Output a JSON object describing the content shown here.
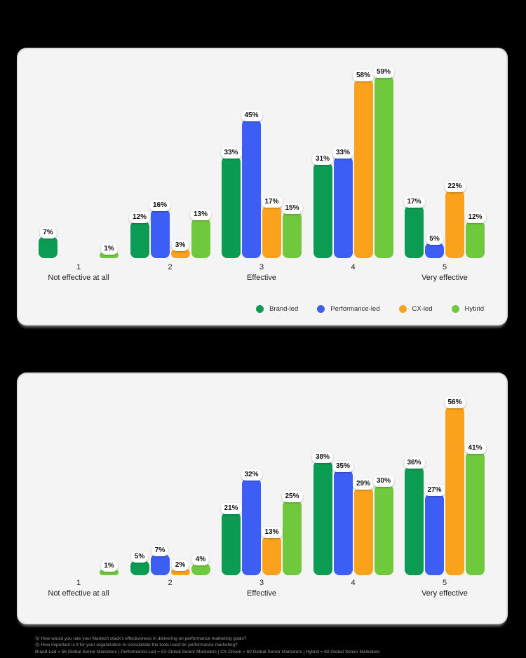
{
  "page": {
    "background": "#000000",
    "panel_background": "#f4f4f5"
  },
  "series_meta": [
    {
      "name": "Brand-led",
      "color": "#0c9b53"
    },
    {
      "name": "Performance-led",
      "color": "#3d5ef5"
    },
    {
      "name": "CX-led",
      "color": "#faa21c"
    },
    {
      "name": "Hybrid",
      "color": "#70c93d"
    }
  ],
  "chart_data": [
    {
      "type": "bar",
      "title": "",
      "categories": [
        "1",
        "2",
        "3",
        "4",
        "5"
      ],
      "category_sublabels": [
        "Not effective at all",
        "",
        "Effective",
        "",
        "Very effective"
      ],
      "series": [
        {
          "name": "Brand-led",
          "color": "#0c9b53",
          "values": [
            7,
            12,
            33,
            31,
            17
          ]
        },
        {
          "name": "Performance-led",
          "color": "#3d5ef5",
          "values": [
            0,
            16,
            45,
            33,
            5
          ]
        },
        {
          "name": "CX-led",
          "color": "#faa21c",
          "values": [
            0,
            3,
            17,
            58,
            22
          ]
        },
        {
          "name": "Hybrid",
          "color": "#70c93d",
          "values": [
            1,
            13,
            15,
            59,
            12
          ]
        }
      ],
      "value_suffix": "%",
      "ylim": [
        0,
        60
      ],
      "grid": false,
      "legend_position": "bottom-right",
      "show_legend": true
    },
    {
      "type": "bar",
      "title": "",
      "categories": [
        "1",
        "2",
        "3",
        "4",
        "5"
      ],
      "category_sublabels": [
        "Not effective at all",
        "",
        "Effective",
        "",
        "Very effective"
      ],
      "series": [
        {
          "name": "Brand-led",
          "color": "#0c9b53",
          "values": [
            0,
            5,
            21,
            38,
            36
          ]
        },
        {
          "name": "Performance-led",
          "color": "#3d5ef5",
          "values": [
            0,
            7,
            32,
            35,
            27
          ]
        },
        {
          "name": "CX-led",
          "color": "#faa21c",
          "values": [
            0,
            2,
            13,
            29,
            56
          ]
        },
        {
          "name": "Hybrid",
          "color": "#70c93d",
          "values": [
            1,
            4,
            25,
            30,
            41
          ]
        }
      ],
      "value_suffix": "%",
      "ylim": [
        0,
        60
      ],
      "grid": false,
      "legend_position": "none",
      "show_legend": false
    }
  ],
  "legend": {
    "items": [
      "Brand-led",
      "Performance-led",
      "CX-led",
      "Hybrid"
    ]
  },
  "footnotes": {
    "line1": "Ⓠ How would you rate your Martech stack's effectiveness in delivering on performance marketing goals?",
    "line2": "Ⓠ How important is it for your organization to consolidate the tools used for performance marketing?",
    "line3": "Brand-Led = 56 Global Senior Marketers | Performance-Led = 53 Global Senior Marketers | CX-Driven = 60 Global Senior Marketers | Hybrid = 60 Global Senior Marketers"
  }
}
